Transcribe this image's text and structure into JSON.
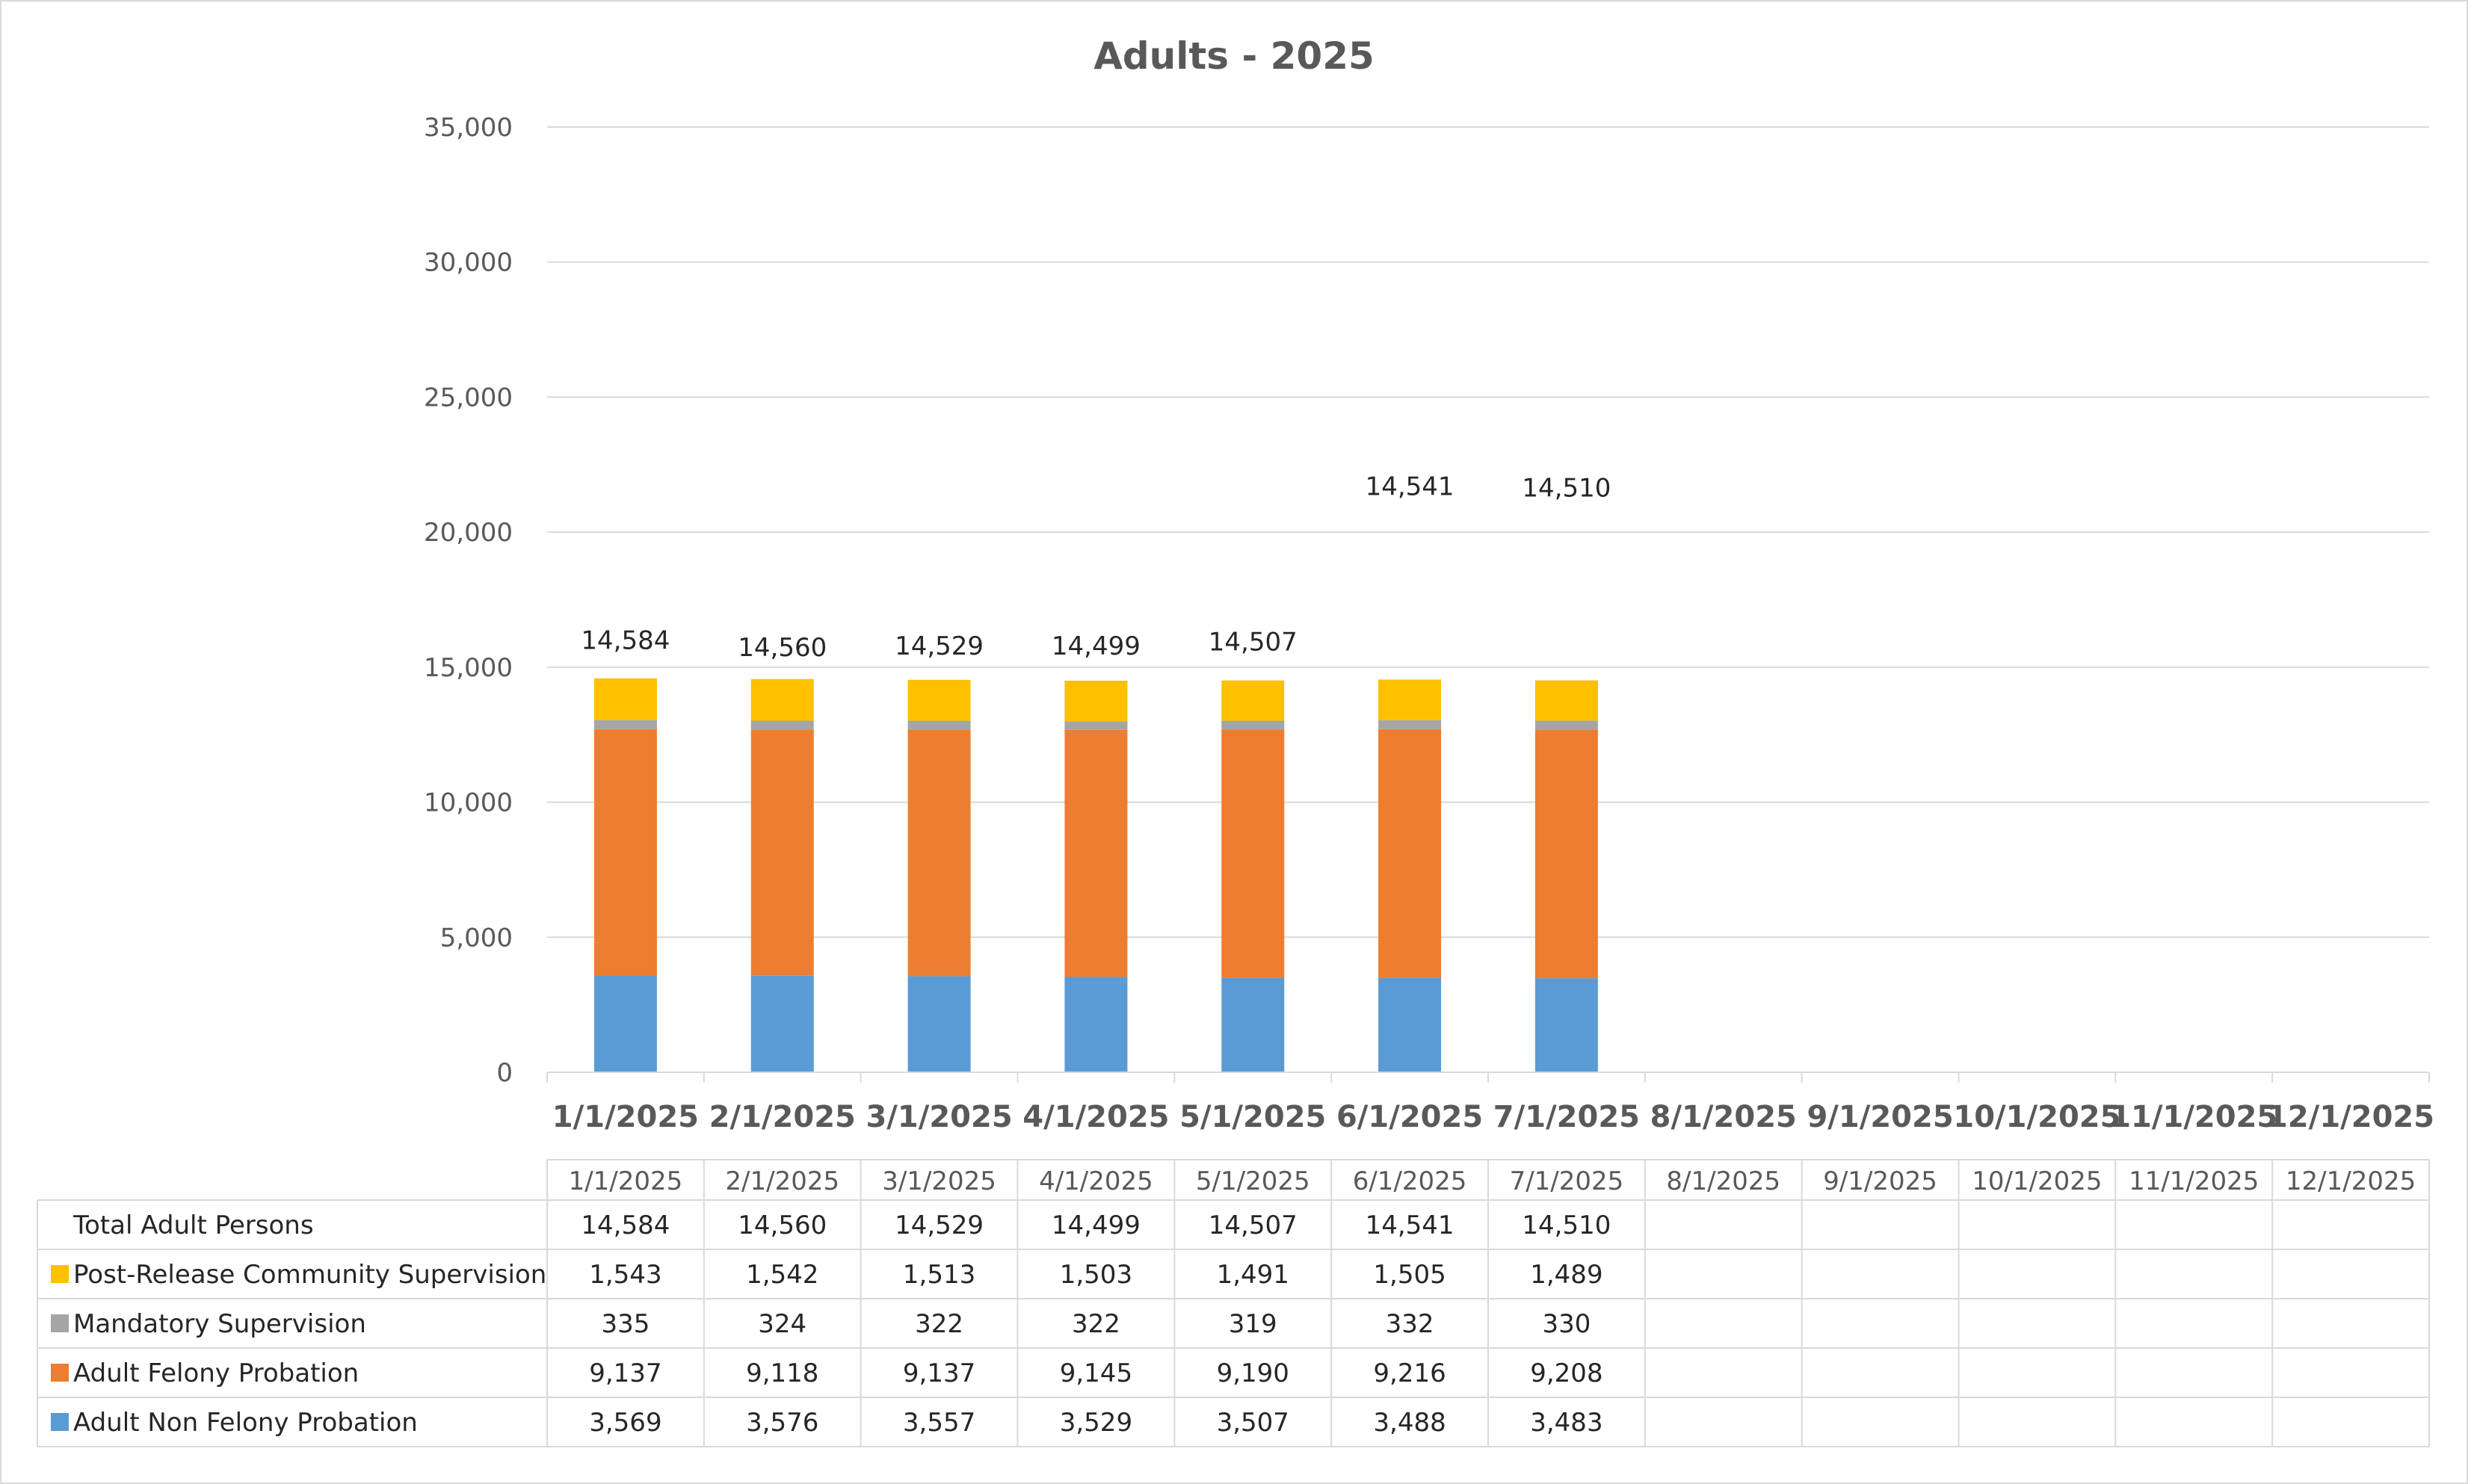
{
  "chart_data": {
    "type": "bar",
    "stacked": true,
    "title": "Adults - 2025",
    "categories": [
      "1/1/2025",
      "2/1/2025",
      "3/1/2025",
      "4/1/2025",
      "5/1/2025",
      "6/1/2025",
      "7/1/2025",
      "8/1/2025",
      "9/1/2025",
      "10/1/2025",
      "11/1/2025",
      "12/1/2025"
    ],
    "ylim": [
      0,
      35000
    ],
    "yticks": [
      "0",
      "5,000",
      "10,000",
      "15,000",
      "20,000",
      "25,000",
      "30,000",
      "35,000"
    ],
    "grid": true,
    "legend": "data-table",
    "series": [
      {
        "name": "Adult Non Felony Probation",
        "color": "#5b9bd5",
        "values": [
          3569,
          3576,
          3557,
          3529,
          3507,
          3488,
          3483,
          null,
          null,
          null,
          null,
          null
        ],
        "labels": [
          "3,569",
          "3,576",
          "3,557",
          "3,529",
          "3,507",
          "3,488",
          "3,483",
          "",
          "",
          "",
          "",
          ""
        ]
      },
      {
        "name": "Adult Felony Probation",
        "color": "#ed7d31",
        "values": [
          9137,
          9118,
          9137,
          9145,
          9190,
          9216,
          9208,
          null,
          null,
          null,
          null,
          null
        ],
        "labels": [
          "9,137",
          "9,118",
          "9,137",
          "9,145",
          "9,190",
          "9,216",
          "9,208",
          "",
          "",
          "",
          "",
          ""
        ]
      },
      {
        "name": "Mandatory Supervision",
        "color": "#a5a5a5",
        "values": [
          335,
          324,
          322,
          322,
          319,
          332,
          330,
          null,
          null,
          null,
          null,
          null
        ],
        "labels": [
          "335",
          "324",
          "322",
          "322",
          "319",
          "332",
          "330",
          "",
          "",
          "",
          "",
          ""
        ]
      },
      {
        "name": "Post-Release Community Supervision",
        "color": "#ffc000",
        "values": [
          1543,
          1542,
          1513,
          1503,
          1491,
          1505,
          1489,
          null,
          null,
          null,
          null,
          null
        ],
        "labels": [
          "1,543",
          "1,542",
          "1,513",
          "1,503",
          "1,491",
          "1,505",
          "1,489",
          "",
          "",
          "",
          "",
          ""
        ]
      }
    ],
    "total": {
      "name": "Total Adult Persons",
      "values": [
        14584,
        14560,
        14529,
        14499,
        14507,
        14541,
        14510,
        null,
        null,
        null,
        null,
        null
      ],
      "labels": [
        "14,584",
        "14,560",
        "14,529",
        "14,499",
        "14,507",
        "14,541",
        "14,510",
        "",
        "",
        "",
        "",
        ""
      ],
      "display_values": [
        16000,
        15750,
        15800,
        15800,
        15950,
        21700,
        21650,
        null,
        null,
        null,
        null,
        null
      ]
    }
  }
}
